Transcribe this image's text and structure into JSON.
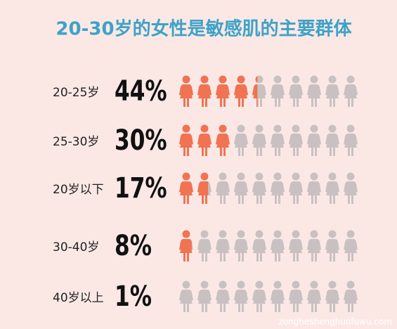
{
  "chart_data": {
    "type": "pictogram",
    "title": "20-30岁的女性是敏感肌的主要群体",
    "categories": [
      "20-25岁",
      "25-30岁",
      "20岁以下",
      "30-40岁",
      "40岁以上"
    ],
    "values": [
      44,
      30,
      17,
      8,
      1
    ],
    "value_labels": [
      "44%",
      "30%",
      "17%",
      "8%",
      "1%"
    ],
    "color": "#f07352",
    "rest_color": "#c9c1c1",
    "icons_per_row": 10,
    "watermark": "zongheshenghuofuwu.com"
  }
}
